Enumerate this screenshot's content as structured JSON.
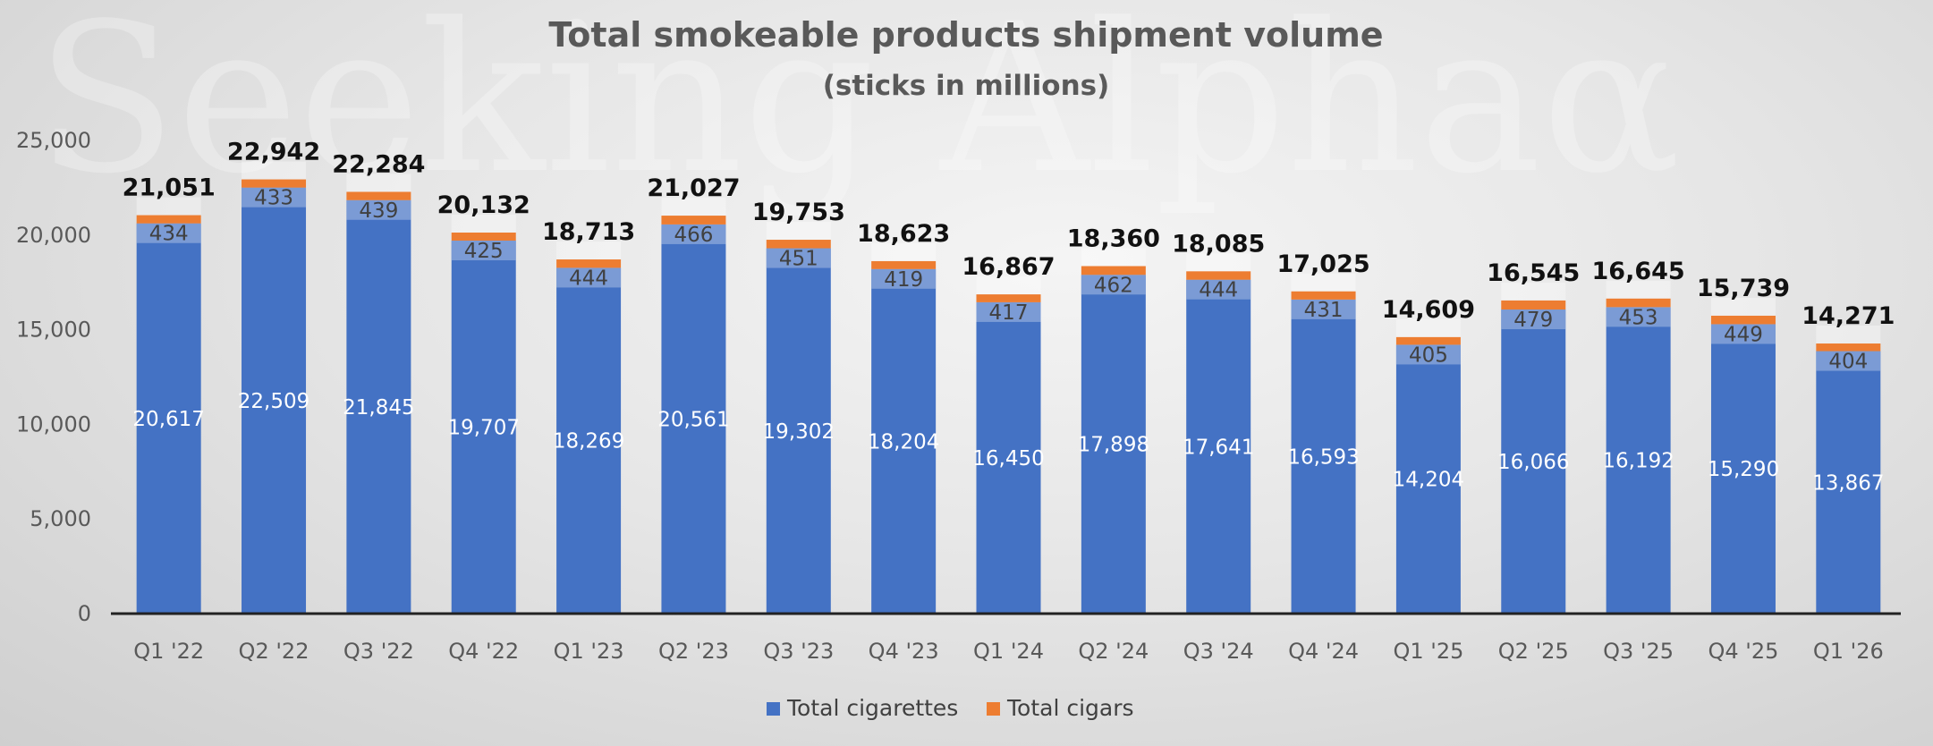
{
  "watermark": "Seeking Alphaα",
  "chart_data": {
    "type": "bar",
    "stacked": true,
    "title": "Total smokeable products shipment volume",
    "subtitle": "(sticks in millions)",
    "ylim": [
      0,
      25000
    ],
    "yticks": [
      "0",
      "5,000",
      "10,000",
      "15,000",
      "20,000",
      "25,000"
    ],
    "ytick_values": [
      0,
      5000,
      10000,
      15000,
      20000,
      25000
    ],
    "grid": false,
    "legend_position": "bottom",
    "categories": [
      "Q1 '22",
      "Q2 '22",
      "Q3 '22",
      "Q4 '22",
      "Q1 '23",
      "Q2 '23",
      "Q3 '23",
      "Q4 '23",
      "Q1 '24",
      "Q2 '24",
      "Q3 '24",
      "Q4 '24",
      "Q1 '25",
      "Q2 '25",
      "Q3 '25",
      "Q4 '25",
      "Q1 '26"
    ],
    "series": [
      {
        "name": "Total cigarettes",
        "color": "#4472C4",
        "values": [
          20617,
          22509,
          21845,
          19707,
          18269,
          20561,
          19302,
          18204,
          16450,
          17898,
          17641,
          16593,
          14204,
          16066,
          16192,
          15290,
          13867
        ],
        "labels": [
          "20,617",
          "22,509",
          "21,845",
          "19,707",
          "18,269",
          "20,561",
          "19,302",
          "18,204",
          "16,450",
          "17,898",
          "17,641",
          "16,593",
          "14,204",
          "16,066",
          "16,192",
          "15,290",
          "13,867"
        ]
      },
      {
        "name": "Total cigars",
        "color": "#ED7D31",
        "values": [
          434,
          433,
          439,
          425,
          444,
          466,
          451,
          419,
          417,
          462,
          444,
          431,
          405,
          479,
          453,
          449,
          404
        ],
        "labels": [
          "434",
          "433",
          "439",
          "425",
          "444",
          "466",
          "451",
          "419",
          "417",
          "462",
          "444",
          "431",
          "405",
          "479",
          "453",
          "449",
          "404"
        ]
      }
    ],
    "totals": [
      21051,
      22942,
      22284,
      20132,
      18713,
      21027,
      19753,
      18623,
      16867,
      18360,
      18085,
      17025,
      14609,
      16545,
      16645,
      15739,
      14271
    ],
    "total_labels": [
      "21,051",
      "22,942",
      "22,284",
      "20,132",
      "18,713",
      "21,027",
      "19,753",
      "18,623",
      "16,867",
      "18,360",
      "18,085",
      "17,025",
      "14,609",
      "16,545",
      "16,645",
      "15,739",
      "14,271"
    ]
  }
}
